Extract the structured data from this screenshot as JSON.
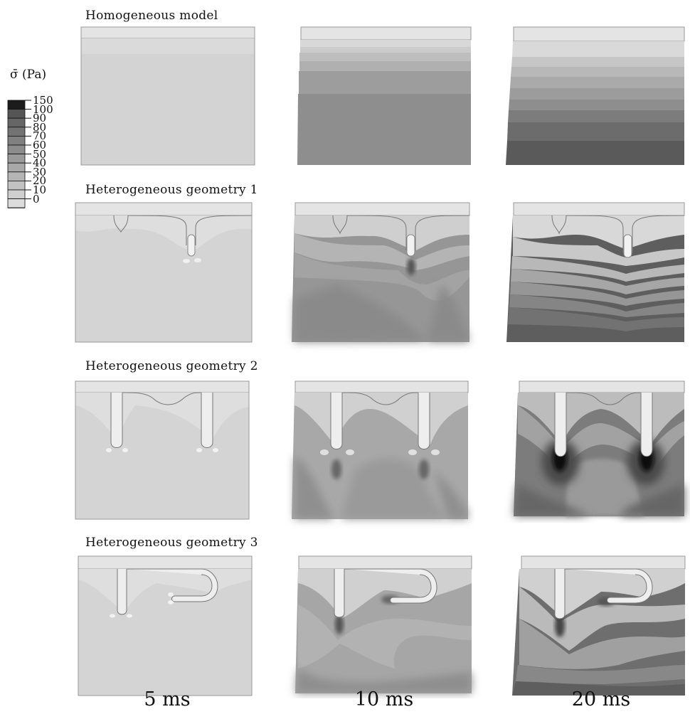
{
  "legend": {
    "symbol": "σ̄",
    "unit": "(Pa)",
    "labels": [
      "150",
      "100",
      "90",
      "80",
      "70",
      "60",
      "50",
      "40",
      "30",
      "20",
      "10",
      "0"
    ],
    "colors": [
      "#1c1c1c",
      "#555555",
      "#666666",
      "#727272",
      "#808080",
      "#8c8c8c",
      "#9a9a9a",
      "#a8a8a8",
      "#b4b4b4",
      "#c2c2c2",
      "#cfcfcf",
      "#dcdcdc"
    ]
  },
  "rows": [
    {
      "title": "Homogeneous model"
    },
    {
      "title": "Heterogeneous geometry 1"
    },
    {
      "title": "Heterogeneous geometry 2"
    },
    {
      "title": "Heterogeneous geometry 3"
    }
  ],
  "columns": [
    {
      "label": "5 ms"
    },
    {
      "label": "10 ms"
    },
    {
      "label": "20 ms"
    }
  ]
}
